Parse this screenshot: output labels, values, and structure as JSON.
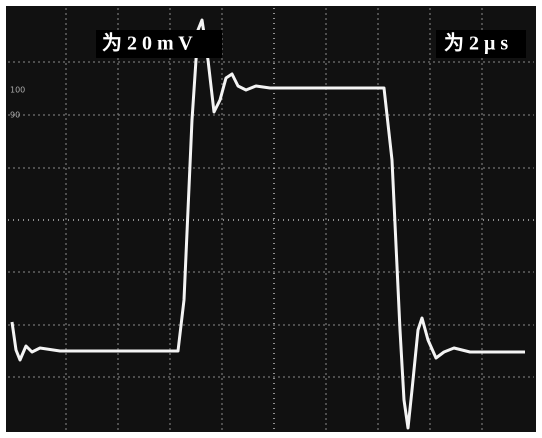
{
  "labels": {
    "volts_per_div": "为 2 0 m V",
    "time_per_div": "为 2 μ s",
    "marker_100": "100",
    "marker_90": "90"
  }
}
